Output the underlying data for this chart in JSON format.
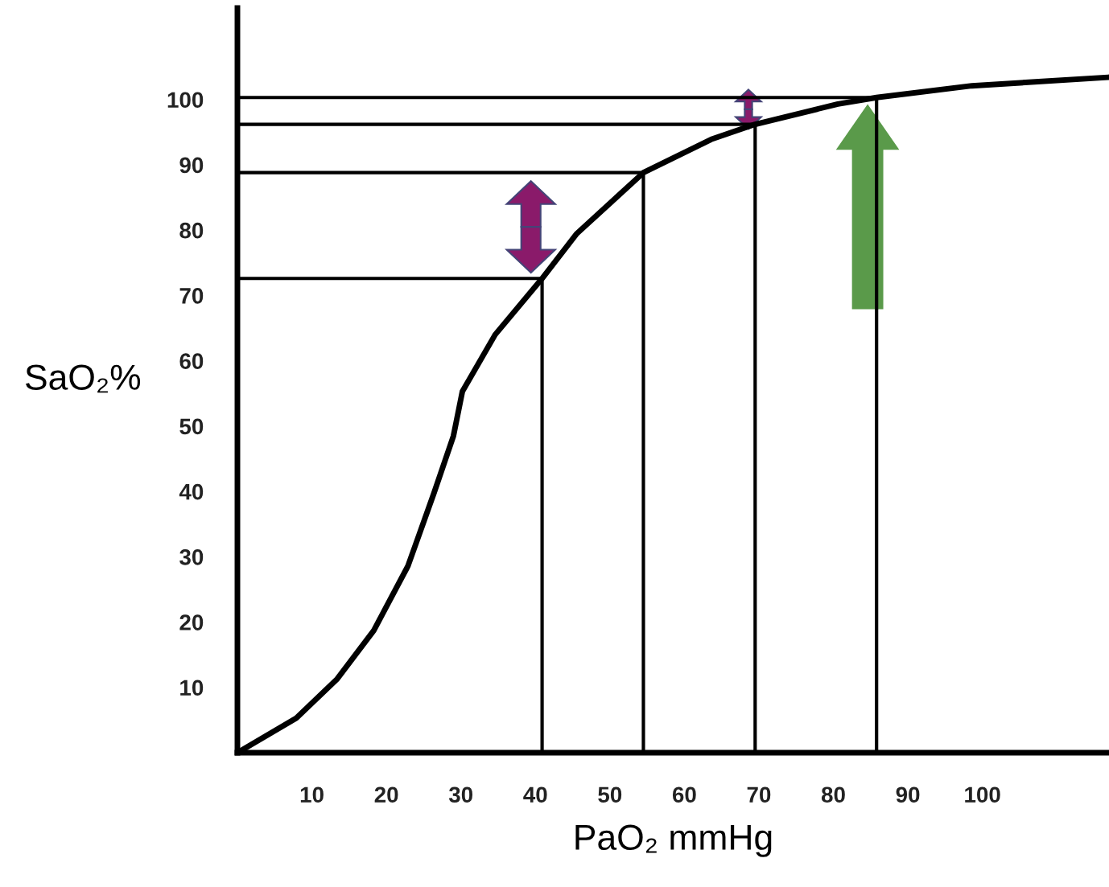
{
  "chart_data": {
    "type": "line",
    "xlabel": "PaO₂ mmHg",
    "ylabel": "SaO₂%",
    "xlim": [
      0,
      117
    ],
    "ylim": [
      0,
      114
    ],
    "xticks": [
      10,
      20,
      30,
      40,
      50,
      60,
      70,
      80,
      90,
      100
    ],
    "yticks": [
      10,
      20,
      30,
      40,
      50,
      60,
      70,
      80,
      90,
      100
    ],
    "marker": "none",
    "line_style": "solid",
    "series": [
      {
        "color": "#000000",
        "x": [
          0,
          7.9,
          13.4,
          18.3,
          22.9,
          26.4,
          29.0,
          30.2,
          34.6,
          40.9,
          45.5,
          54.5,
          63.6,
          69.5,
          80.6,
          85.8,
          98.6,
          116.9
        ],
        "values": [
          0,
          5.3,
          11.3,
          18.7,
          28.6,
          39.8,
          48.5,
          55.3,
          64.0,
          72.6,
          79.4,
          88.8,
          93.9,
          96.2,
          99.3,
          100.3,
          102.1,
          103.4
        ]
      },
      {
        "color": "#000000",
        "x": [
          0,
          40.9,
          40.9
        ],
        "values": [
          72.6,
          72.6,
          0
        ]
      },
      {
        "color": "#000000",
        "x": [
          0,
          54.5,
          54.5
        ],
        "values": [
          88.8,
          88.8,
          0
        ]
      },
      {
        "color": "#000000",
        "x": [
          0,
          69.5,
          69.5
        ],
        "values": [
          96.2,
          96.2,
          0
        ]
      },
      {
        "color": "#000000",
        "x": [
          0,
          85.8,
          85.8
        ],
        "values": [
          100.3,
          100.3,
          0
        ]
      }
    ]
  }
}
